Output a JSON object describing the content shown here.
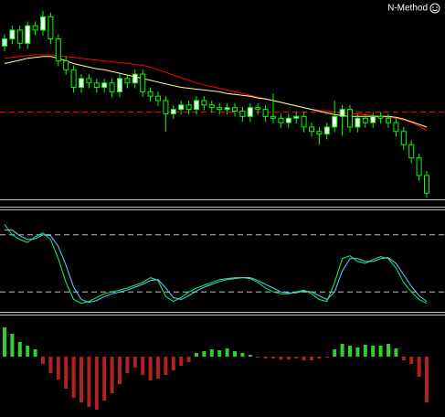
{
  "chart_data": [
    {
      "type": "candlestick",
      "title": "N-Method",
      "open": [
        172,
        180,
        190,
        175,
        195,
        190,
        205,
        180,
        155,
        145,
        125,
        135,
        130,
        125,
        130,
        120,
        135,
        130,
        140,
        120,
        115,
        110,
        95,
        100,
        105,
        100,
        110,
        105,
        102,
        100,
        102,
        98,
        92,
        102,
        100,
        92,
        90,
        85,
        90,
        92,
        80,
        75,
        72,
        80,
        92,
        100,
        80,
        90,
        85,
        92,
        90,
        85,
        75,
        60,
        45,
        25
      ],
      "high": [
        185,
        195,
        195,
        200,
        200,
        212,
        210,
        185,
        160,
        150,
        140,
        140,
        135,
        135,
        135,
        140,
        140,
        145,
        145,
        125,
        120,
        115,
        105,
        110,
        110,
        115,
        115,
        110,
        107,
        107,
        107,
        103,
        107,
        107,
        105,
        118,
        95,
        95,
        97,
        97,
        85,
        80,
        85,
        110,
        105,
        105,
        95,
        95,
        97,
        97,
        95,
        90,
        80,
        65,
        50,
        30
      ],
      "low": [
        166,
        174,
        169,
        169,
        184,
        184,
        174,
        149,
        139,
        119,
        119,
        124,
        119,
        119,
        114,
        114,
        124,
        124,
        114,
        109,
        104,
        75,
        89,
        94,
        94,
        94,
        99,
        96,
        94,
        94,
        92,
        86,
        86,
        94,
        86,
        84,
        79,
        79,
        84,
        74,
        69,
        60,
        66,
        74,
        70,
        74,
        74,
        79,
        79,
        84,
        79,
        69,
        54,
        39,
        19,
        0
      ],
      "close": [
        180,
        190,
        175,
        195,
        190,
        205,
        180,
        155,
        145,
        125,
        135,
        130,
        125,
        130,
        120,
        135,
        130,
        140,
        120,
        115,
        110,
        95,
        100,
        105,
        100,
        110,
        105,
        102,
        100,
        102,
        98,
        92,
        102,
        100,
        92,
        90,
        85,
        90,
        92,
        80,
        75,
        72,
        80,
        92,
        100,
        80,
        90,
        85,
        92,
        90,
        85,
        75,
        60,
        45,
        25,
        5
      ],
      "up_color": "#ffffff",
      "down_color": "#000000",
      "wick_color": "#00ff00",
      "overlays": [
        {
          "color": "#ff0000",
          "values": [
            158,
            159,
            160,
            161,
            162,
            162,
            162,
            161,
            160,
            159,
            158,
            157,
            156,
            155,
            154,
            153,
            152,
            151,
            150,
            148,
            145,
            142,
            139,
            136,
            133,
            130,
            128,
            126,
            124,
            122,
            120,
            118,
            116,
            114,
            112,
            110,
            108,
            106,
            104,
            102,
            100,
            99,
            98,
            97,
            96,
            95,
            95,
            94,
            93,
            92,
            91,
            90,
            88,
            85,
            81,
            76
          ]
        },
        {
          "color": "#ffff99",
          "values": [
            152,
            154,
            156,
            158,
            159,
            160,
            160,
            158,
            155,
            152,
            150,
            148,
            146,
            145,
            143,
            141,
            139,
            137,
            135,
            133,
            131,
            129,
            127,
            125,
            124,
            123,
            122,
            121,
            120,
            118,
            117,
            116,
            115,
            113,
            112,
            110,
            108,
            106,
            104,
            102,
            100,
            98,
            96,
            94,
            93,
            92,
            92,
            92,
            92,
            92,
            92,
            91,
            89,
            86,
            83,
            80
          ]
        }
      ],
      "hlines": [
        {
          "value": 97,
          "color": "#ff0000"
        }
      ],
      "ylim": [
        0,
        220
      ]
    },
    {
      "type": "line",
      "series": [
        {
          "color": "#00ff66",
          "values": [
            91,
            80,
            75,
            72,
            78,
            82,
            75,
            55,
            30,
            12,
            8,
            10,
            14,
            18,
            20,
            22,
            24,
            27,
            30,
            35,
            32,
            15,
            10,
            14,
            20,
            24,
            27,
            30,
            33,
            34,
            35,
            35,
            34,
            30,
            24,
            20,
            18,
            18,
            20,
            22,
            18,
            12,
            10,
            30,
            55,
            58,
            52,
            50,
            54,
            57,
            55,
            45,
            30,
            20,
            12,
            8
          ]
        },
        {
          "color": "#66ccff",
          "values": [
            85,
            85,
            79,
            75,
            76,
            80,
            79,
            68,
            48,
            25,
            12,
            9,
            11,
            15,
            18,
            20,
            22,
            25,
            28,
            32,
            33,
            24,
            14,
            12,
            16,
            21,
            25,
            28,
            31,
            33,
            34,
            35,
            35,
            32,
            28,
            24,
            20,
            19,
            19,
            21,
            20,
            16,
            12,
            20,
            42,
            55,
            55,
            52,
            52,
            55,
            56,
            50,
            38,
            26,
            16,
            10
          ]
        }
      ],
      "hlines": [
        {
          "value": 80,
          "color": "#c0c0c0"
        },
        {
          "value": 20,
          "color": "#c0c0c0"
        }
      ],
      "ylim": [
        0,
        100
      ]
    },
    {
      "type": "bar",
      "values": [
        32,
        25,
        16,
        12,
        8,
        -8,
        -18,
        -25,
        -35,
        -45,
        -50,
        -55,
        -58,
        -48,
        -40,
        -30,
        -18,
        -12,
        -20,
        -26,
        -24,
        -20,
        -15,
        -10,
        -6,
        4,
        6,
        8,
        7,
        9,
        6,
        4,
        2,
        -1,
        -2,
        -2,
        -3,
        -3,
        -2,
        -4,
        -4,
        -2,
        -1,
        8,
        14,
        12,
        10,
        13,
        12,
        12,
        14,
        9,
        -4,
        -8,
        -22,
        -50
      ],
      "up_color": "#33cc33",
      "down_color": "#b22222",
      "ylim": [
        -65,
        40
      ]
    }
  ]
}
